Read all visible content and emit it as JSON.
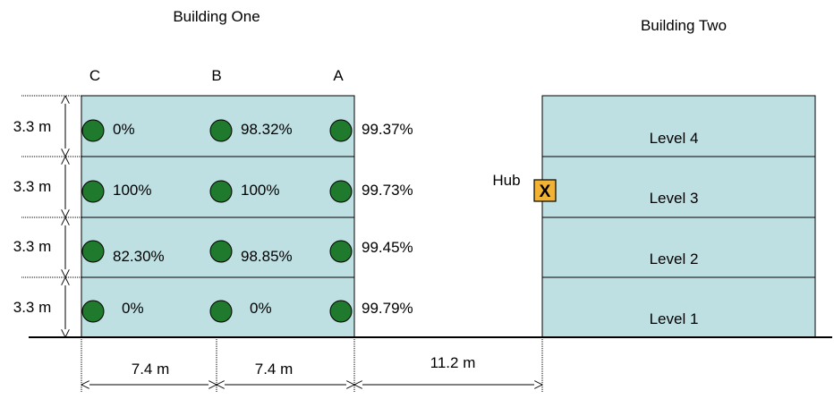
{
  "colors": {
    "building_fill": "#bfe0e3",
    "outline": "#000000",
    "sensor": "#1f7a2e",
    "hub_fill": "#f2b233"
  },
  "building_one": {
    "title": "Building One",
    "columns": [
      "C",
      "B",
      "A"
    ],
    "floor_heights": [
      "3.3 m",
      "3.3 m",
      "3.3 m",
      "3.3 m"
    ],
    "bay_widths": [
      "7.4 m",
      "7.4 m"
    ],
    "floors": [
      {
        "values": [
          "0%",
          "98.32%",
          "99.37%"
        ]
      },
      {
        "values": [
          "100%",
          "100%",
          "99.73%"
        ]
      },
      {
        "values": [
          "82.30%",
          "98.85%",
          "99.45%"
        ]
      },
      {
        "values": [
          "0%",
          "0%",
          "99.79%"
        ]
      }
    ]
  },
  "gap_label": "11.2 m",
  "hub": {
    "label": "Hub",
    "marker": "X"
  },
  "building_two": {
    "title": "Building Two",
    "levels": [
      "Level 4",
      "Level 3",
      "Level 2",
      "Level 1"
    ]
  }
}
